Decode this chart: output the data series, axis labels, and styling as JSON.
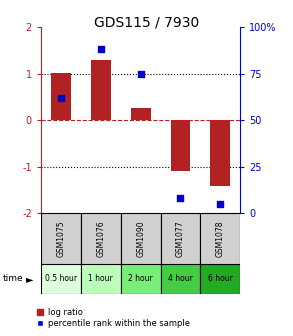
{
  "title": "GDS115 / 7930",
  "categories": [
    "GSM1075",
    "GSM1076",
    "GSM1090",
    "GSM1077",
    "GSM1078"
  ],
  "time_labels": [
    "0.5 hour",
    "1 hour",
    "2 hour",
    "4 hour",
    "6 hour"
  ],
  "log_ratios": [
    1.02,
    1.3,
    0.25,
    -1.1,
    -1.42
  ],
  "percentile_ranks": [
    62,
    88,
    75,
    8,
    5
  ],
  "bar_color": "#b22222",
  "dot_color": "#0000cc",
  "ylim": [
    -2,
    2
  ],
  "y_right_ticks": [
    0,
    25,
    50,
    75,
    100
  ],
  "y_right_labels": [
    "0",
    "25",
    "50",
    "75",
    "100%"
  ],
  "y_left_ticks": [
    -2,
    -1,
    0,
    1,
    2
  ],
  "hline_dotted": [
    1.0,
    -1.0
  ],
  "hline_dashed_red": 0.0,
  "time_colors": [
    "#dfffdf",
    "#bbffbb",
    "#77ee77",
    "#44cc44",
    "#22aa22"
  ],
  "bar_width": 0.5,
  "legend_log_ratio": "log ratio",
  "legend_percentile": "percentile rank within the sample",
  "time_label": "time",
  "gsm_bg": "#d0d0d0"
}
